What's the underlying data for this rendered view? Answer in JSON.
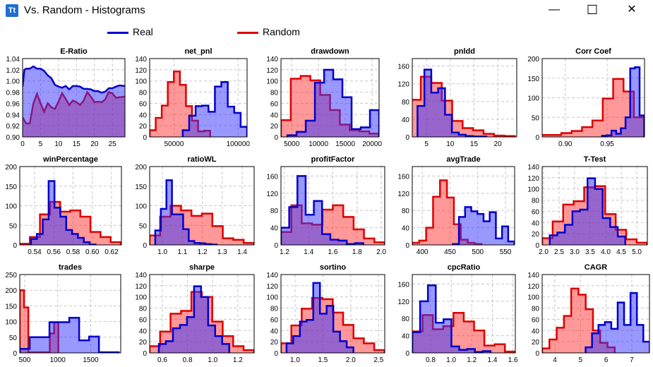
{
  "window": {
    "title": "Vs. Random - Histograms",
    "icon_text": "Tt",
    "minimize": "—",
    "maximize": "☐",
    "close": "✕"
  },
  "legend": [
    {
      "label": "Real",
      "color": "#0000cc"
    },
    {
      "label": "Random",
      "color": "#dd0000"
    }
  ],
  "colors": {
    "real_line": "#0000cc",
    "real_fill": "rgba(50,50,255,0.5)",
    "random_line": "#dd0000",
    "random_fill": "rgba(255,50,50,0.5)",
    "grid": "#c8c8c8"
  },
  "chart_data": [
    {
      "type": "area",
      "title": "E-Ratio",
      "xlim": [
        0,
        28.5
      ],
      "ylim": [
        0.9,
        1.04
      ],
      "xticks": [
        "0",
        "5",
        "10",
        "15",
        "20",
        "25"
      ],
      "yticks": [
        "0.90",
        "0.92",
        "0.94",
        "0.96",
        "0.98",
        "1.00",
        "1.02",
        "1.04"
      ],
      "grid": true,
      "series": [
        {
          "name": "Random",
          "points": [
            [
              0,
              0.935
            ],
            [
              1,
              0.924
            ],
            [
              2,
              0.924
            ],
            [
              3,
              0.96
            ],
            [
              4,
              0.977
            ],
            [
              5,
              0.96
            ],
            [
              6,
              0.945
            ],
            [
              7,
              0.96
            ],
            [
              8,
              0.953
            ],
            [
              9,
              0.95
            ],
            [
              10,
              0.963
            ],
            [
              11,
              0.978
            ],
            [
              12,
              0.968
            ],
            [
              13,
              0.957
            ],
            [
              14,
              0.965
            ],
            [
              15,
              0.962
            ],
            [
              16,
              0.957
            ],
            [
              17,
              0.965
            ],
            [
              18,
              0.98
            ],
            [
              19,
              0.972
            ],
            [
              20,
              0.962
            ],
            [
              21,
              0.963
            ],
            [
              22,
              0.962
            ],
            [
              23,
              0.967
            ],
            [
              24,
              0.98
            ],
            [
              25,
              0.978
            ],
            [
              26,
              0.97
            ],
            [
              27,
              0.971
            ],
            [
              28.5,
              0.972
            ]
          ]
        },
        {
          "name": "Real",
          "points": [
            [
              0,
              0.99
            ],
            [
              0.5,
              1.02
            ],
            [
              1,
              1.022
            ],
            [
              2,
              1.022
            ],
            [
              3,
              1.026
            ],
            [
              4,
              1.022
            ],
            [
              5,
              1.022
            ],
            [
              6,
              1.018
            ],
            [
              7,
              1.01
            ],
            [
              8,
              1.005
            ],
            [
              9,
              0.993
            ],
            [
              10,
              0.99
            ],
            [
              11,
              0.988
            ],
            [
              12,
              0.991
            ],
            [
              13,
              0.985
            ],
            [
              14,
              0.991
            ],
            [
              15,
              0.991
            ],
            [
              16,
              0.99
            ],
            [
              17,
              0.986
            ],
            [
              18,
              0.986
            ],
            [
              19,
              0.985
            ],
            [
              20,
              0.982
            ],
            [
              21,
              0.982
            ],
            [
              22,
              0.979
            ],
            [
              23,
              0.981
            ],
            [
              24,
              0.987
            ],
            [
              25,
              0.987
            ],
            [
              26,
              0.99
            ],
            [
              27,
              0.992
            ],
            [
              28.5,
              0.991
            ]
          ]
        }
      ]
    },
    {
      "type": "bar",
      "title": "net_pnl",
      "xlim": [
        31000,
        107000
      ],
      "ylim": [
        0,
        140
      ],
      "xticks": [
        "50000",
        "100000"
      ],
      "yticks": [
        "0",
        "20",
        "40",
        "60",
        "80",
        "100",
        "120",
        "140"
      ],
      "grid": true,
      "series": [
        {
          "name": "Random",
          "start": 31000,
          "width": 4720,
          "counts": [
            12,
            34,
            56,
            98,
            117,
            93,
            55,
            29,
            10,
            11
          ]
        },
        {
          "name": "Real",
          "start": 56800,
          "width": 5020,
          "counts": [
            12,
            38,
            55,
            56,
            45,
            90,
            98,
            54,
            43,
            18
          ]
        }
      ]
    },
    {
      "type": "bar",
      "title": "drawdown",
      "xlim": [
        3000,
        21300
      ],
      "ylim": [
        0,
        140
      ],
      "xticks": [
        "5000",
        "10000",
        "15000",
        "20000"
      ],
      "yticks": [
        "0",
        "20",
        "40",
        "60",
        "80",
        "100",
        "120",
        "140"
      ],
      "grid": true,
      "series": [
        {
          "name": "Random",
          "start": 3000,
          "width": 1830,
          "counts": [
            30,
            104,
            109,
            101,
            75,
            48,
            22,
            12,
            10,
            6
          ]
        },
        {
          "name": "Real",
          "start": 4200,
          "width": 1710,
          "counts": [
            3,
            9,
            29,
            97,
            120,
            103,
            71,
            14,
            17,
            48
          ]
        }
      ]
    },
    {
      "type": "bar",
      "title": "pnldd",
      "xlim": [
        2.0,
        24
      ],
      "ylim": [
        0,
        177
      ],
      "xticks": [
        "5",
        "10",
        "15",
        "20"
      ],
      "yticks": [
        "0",
        "40",
        "80",
        "120",
        "160"
      ],
      "grid": true,
      "series": [
        {
          "name": "Random",
          "start": 1.6,
          "width": 2.2,
          "counts": [
            84,
            136,
            122,
            82,
            36,
            20,
            15,
            7,
            3,
            2
          ]
        },
        {
          "name": "Real",
          "start": 3.1,
          "width": 1.45,
          "counts": [
            70,
            152,
            100,
            110,
            50,
            10,
            5,
            2,
            1,
            1
          ]
        }
      ]
    },
    {
      "type": "bar",
      "title": "Corr Coef",
      "xlim": [
        0.8724,
        0.9947
      ],
      "ylim": [
        0,
        200
      ],
      "xticks": [
        "0.90",
        "0.95"
      ],
      "yticks": [
        "0",
        "50",
        "100",
        "150",
        "200"
      ],
      "grid": true,
      "series": [
        {
          "name": "Random",
          "start": 0.8704,
          "width": 0.0124,
          "counts": [
            5,
            5,
            10,
            15,
            25,
            42,
            98,
            148,
            116,
            50
          ]
        },
        {
          "name": "Real",
          "start": 0.944,
          "width": 0.0056,
          "counts": [
            3,
            4,
            16,
            8,
            22,
            50,
            175,
            178,
            55
          ]
        }
      ]
    },
    {
      "type": "bar",
      "title": "winPercentage",
      "xlim": [
        0.5246,
        0.6303
      ],
      "ylim": [
        0,
        200
      ],
      "xticks": [
        "0.54",
        "0.56",
        "0.58",
        "0.60",
        "0.62"
      ],
      "yticks": [
        "0",
        "50",
        "100",
        "150",
        "200"
      ],
      "grid": true,
      "series": [
        {
          "name": "Random",
          "start": 0.5246,
          "width": 0.0105,
          "counts": [
            3,
            20,
            78,
            110,
            85,
            88,
            72,
            33,
            20,
            7
          ]
        },
        {
          "name": "Real",
          "start": 0.5363,
          "width": 0.0061,
          "counts": [
            15,
            28,
            65,
            163,
            95,
            72,
            38,
            28,
            18,
            7,
            1
          ]
        }
      ]
    },
    {
      "type": "bar",
      "title": "ratioWL",
      "xlim": [
        0.936,
        1.46
      ],
      "ylim": [
        0,
        200
      ],
      "xticks": [
        "1.0",
        "1.1",
        "1.2",
        "1.3",
        "1.4"
      ],
      "yticks": [
        "0",
        "50",
        "100",
        "150",
        "200"
      ],
      "grid": true,
      "series": [
        {
          "name": "Random",
          "start": 0.936,
          "width": 0.0524,
          "counts": [
            24,
            72,
            100,
            88,
            74,
            80,
            48,
            17,
            13,
            5
          ]
        },
        {
          "name": "Real",
          "start": 0.964,
          "width": 0.028,
          "counts": [
            37,
            92,
            165,
            78,
            78,
            40,
            10,
            5,
            4,
            2,
            1
          ]
        }
      ]
    },
    {
      "type": "bar",
      "title": "profitFactor",
      "xlim": [
        1.171,
        2.029
      ],
      "ylim": [
        0,
        182
      ],
      "xticks": [
        "1.2",
        "1.4",
        "1.6",
        "1.8",
        "2.0"
      ],
      "yticks": [
        "0",
        "40",
        "80",
        "120",
        "160"
      ],
      "grid": true,
      "series": [
        {
          "name": "Random",
          "start": 1.171,
          "width": 0.0858,
          "counts": [
            30,
            92,
            50,
            47,
            82,
            92,
            65,
            36,
            15,
            6
          ]
        },
        {
          "name": "Real",
          "start": 1.171,
          "width": 0.068,
          "counts": [
            40,
            88,
            160,
            70,
            102,
            25,
            12,
            10,
            2,
            4
          ]
        }
      ]
    },
    {
      "type": "bar",
      "title": "avgTrade",
      "xlim": [
        382,
        566.5
      ],
      "ylim": [
        0,
        182
      ],
      "xticks": [
        "400",
        "450",
        "500",
        "550"
      ],
      "yticks": [
        "0",
        "40",
        "80",
        "120",
        "160"
      ],
      "grid": true,
      "series": [
        {
          "name": "Random",
          "start": 382,
          "width": 12.5,
          "counts": [
            5,
            10,
            40,
            112,
            150,
            110,
            48,
            12,
            5,
            2
          ]
        },
        {
          "name": "Real",
          "start": 455,
          "width": 11.1,
          "counts": [
            2,
            65,
            88,
            78,
            72,
            55,
            76,
            15,
            43,
            8
          ]
        }
      ]
    },
    {
      "type": "bar",
      "title": "T-Test",
      "xlim": [
        1.955,
        5.34
      ],
      "ylim": [
        0,
        140
      ],
      "xticks": [
        "2.0",
        "2.5",
        "3.0",
        "3.5",
        "4.0",
        "4.5",
        "5.0"
      ],
      "yticks": [
        "0",
        "20",
        "40",
        "60",
        "80",
        "100",
        "120",
        "140"
      ],
      "grid": true,
      "series": [
        {
          "name": "Random",
          "start": 1.955,
          "width": 0.338,
          "counts": [
            12,
            42,
            72,
            78,
            103,
            105,
            55,
            27,
            10,
            4
          ]
        },
        {
          "name": "Real",
          "start": 2.2,
          "width": 0.243,
          "counts": [
            17,
            22,
            36,
            60,
            63,
            119,
            100,
            48,
            32,
            15
          ]
        }
      ]
    },
    {
      "type": "bar",
      "title": "trades",
      "xlim": [
        425,
        1955
      ],
      "ylim": [
        0,
        250
      ],
      "xticks": [
        "500",
        "1000",
        "1500"
      ],
      "yticks": [
        "0",
        "50",
        "100",
        "150",
        "200",
        "250"
      ],
      "grid": true,
      "series": [
        {
          "name": "Random",
          "start": 425,
          "width": 65,
          "counts": [
            200,
            145,
            2,
            2,
            2,
            2,
            2,
            62,
            97
          ]
        },
        {
          "name": "Real",
          "start": 425,
          "width": 150,
          "counts": [
            13,
            50,
            50,
            98,
            98,
            112,
            40,
            52,
            2,
            2
          ]
        }
      ]
    },
    {
      "type": "bar",
      "title": "sharpe",
      "xlim": [
        0.499,
        1.33
      ],
      "ylim": [
        0,
        140
      ],
      "xticks": [
        "0.6",
        "0.8",
        "1.0",
        "1.2"
      ],
      "yticks": [
        "0",
        "20",
        "40",
        "60",
        "80",
        "100",
        "120",
        "140"
      ],
      "grid": true,
      "series": [
        {
          "name": "Random",
          "start": 0.499,
          "width": 0.083,
          "counts": [
            12,
            38,
            70,
            75,
            109,
            100,
            56,
            30,
            12,
            5
          ]
        },
        {
          "name": "Real",
          "start": 0.572,
          "width": 0.056,
          "counts": [
            16,
            21,
            44,
            50,
            64,
            119,
            100,
            49,
            30,
            16
          ]
        }
      ]
    },
    {
      "type": "bar",
      "title": "sortino",
      "xlim": [
        0.747,
        2.61
      ],
      "ylim": [
        0,
        140
      ],
      "xticks": [
        "1.0",
        "1.5",
        "2.0",
        "2.5"
      ],
      "yticks": [
        "0",
        "20",
        "40",
        "60",
        "80",
        "100",
        "120",
        "140"
      ],
      "grid": true,
      "series": [
        {
          "name": "Random",
          "start": 0.747,
          "width": 0.186,
          "counts": [
            17,
            49,
            79,
            98,
            96,
            72,
            50,
            26,
            17,
            5
          ]
        },
        {
          "name": "Real",
          "start": 0.847,
          "width": 0.12,
          "counts": [
            17,
            30,
            56,
            59,
            125,
            70,
            84,
            38,
            21,
            10
          ]
        }
      ]
    },
    {
      "type": "bar",
      "title": "cpcRatio",
      "xlim": [
        0.622,
        1.623
      ],
      "ylim": [
        0,
        182
      ],
      "xticks": [
        "0.8",
        "1.0",
        "1.2",
        "1.4",
        "1.6"
      ],
      "yticks": [
        "0",
        "40",
        "80",
        "120",
        "160"
      ],
      "grid": true,
      "series": [
        {
          "name": "Random",
          "start": 0.622,
          "width": 0.1,
          "counts": [
            50,
            88,
            55,
            62,
            93,
            73,
            52,
            17,
            20,
            3
          ]
        },
        {
          "name": "Real",
          "start": 0.622,
          "width": 0.076,
          "counts": [
            48,
            120,
            157,
            70,
            78,
            15,
            7,
            9,
            2,
            4
          ]
        }
      ]
    },
    {
      "type": "bar",
      "title": "CAGR",
      "xlim": [
        3.505,
        7.69
      ],
      "ylim": [
        0,
        140
      ],
      "xticks": [
        "4",
        "5",
        "6",
        "7"
      ],
      "yticks": [
        "0",
        "20",
        "40",
        "60",
        "80",
        "100",
        "120",
        "140"
      ],
      "grid": true,
      "series": [
        {
          "name": "Random",
          "start": 3.505,
          "width": 0.283,
          "counts": [
            8,
            24,
            45,
            66,
            115,
            104,
            78,
            40,
            18,
            10
          ]
        },
        {
          "name": "Real",
          "start": 5.2,
          "width": 0.25,
          "counts": [
            10,
            35,
            50,
            55,
            43,
            90,
            50,
            107,
            50,
            20
          ]
        }
      ]
    }
  ]
}
